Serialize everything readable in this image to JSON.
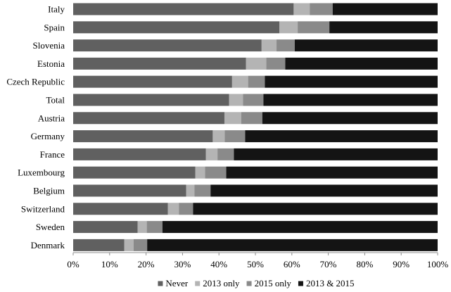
{
  "chart_data": {
    "type": "bar",
    "orientation": "horizontal",
    "stacked": true,
    "title": "",
    "xlabel": "",
    "ylabel": "",
    "xlim": [
      0,
      100
    ],
    "x_ticks": [
      "0%",
      "10%",
      "20%",
      "30%",
      "40%",
      "50%",
      "60%",
      "70%",
      "80%",
      "90%",
      "100%"
    ],
    "grid": false,
    "legend_position": "bottom",
    "categories": [
      "Italy",
      "Spain",
      "Slovenia",
      "Estonia",
      "Czech Republic",
      "Total",
      "Austria",
      "Germany",
      "France",
      "Luxembourg",
      "Belgium",
      "Switzerland",
      "Sweden",
      "Denmark"
    ],
    "series": [
      {
        "name": "Never",
        "color": "#606060",
        "values": [
          60.5,
          56.6,
          51.7,
          47.4,
          43.6,
          42.8,
          41.5,
          38.3,
          36.4,
          33.5,
          31.0,
          26.0,
          17.7,
          14.0
        ]
      },
      {
        "name": "2013 only",
        "color": "#b4b4b4",
        "values": [
          4.4,
          5.0,
          4.1,
          5.6,
          4.4,
          3.8,
          4.6,
          3.3,
          3.2,
          2.7,
          2.3,
          3.0,
          2.5,
          2.6
        ]
      },
      {
        "name": "2015 only",
        "color": "#8a8a8a",
        "values": [
          6.3,
          8.7,
          5.0,
          5.2,
          4.6,
          5.6,
          5.8,
          5.6,
          4.5,
          5.8,
          4.4,
          3.9,
          4.3,
          3.7
        ]
      },
      {
        "name": "2013 & 2015",
        "color": "#141414",
        "values": [
          28.8,
          29.7,
          39.2,
          41.8,
          47.4,
          47.8,
          48.1,
          52.8,
          55.9,
          58.0,
          62.3,
          67.1,
          75.5,
          79.7
        ]
      }
    ]
  }
}
